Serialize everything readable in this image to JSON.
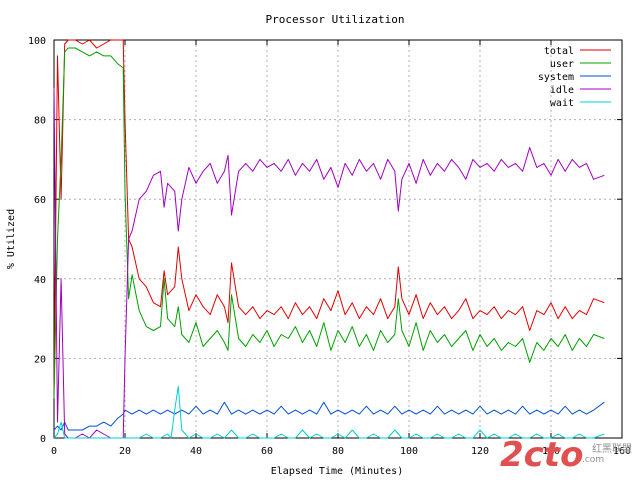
{
  "chart_data": {
    "type": "line",
    "title": "Processor Utilization",
    "xlabel": "Elapsed Time (Minutes)",
    "ylabel": "% Utilized",
    "xlim": [
      0,
      160
    ],
    "ylim": [
      0,
      100
    ],
    "xticks": [
      0,
      20,
      40,
      60,
      80,
      100,
      120,
      140,
      160
    ],
    "yticks": [
      0,
      20,
      40,
      60,
      80,
      100
    ],
    "xtick_labels": [
      "0",
      "20",
      "40",
      "60",
      "80",
      "100",
      "120",
      "140",
      "160"
    ],
    "ytick_labels": [
      "0",
      "20",
      "40",
      "60",
      "80",
      "100"
    ],
    "grid": true,
    "legend_position": "top-right",
    "series": [
      {
        "name": "total",
        "color": "#e00000",
        "x": [
          0,
          1,
          2,
          3,
          4,
          6,
          8,
          10,
          12,
          14,
          16,
          18,
          19.5,
          20,
          21,
          22,
          24,
          26,
          28,
          30,
          31,
          32,
          34,
          35,
          36,
          38,
          40,
          42,
          44,
          46,
          48,
          49,
          50,
          52,
          54,
          56,
          58,
          60,
          62,
          64,
          66,
          68,
          70,
          72,
          74,
          76,
          78,
          80,
          82,
          84,
          86,
          88,
          90,
          92,
          94,
          96,
          97,
          98,
          100,
          102,
          104,
          106,
          108,
          110,
          112,
          114,
          116,
          118,
          120,
          122,
          124,
          126,
          128,
          130,
          132,
          134,
          136,
          138,
          140,
          142,
          144,
          146,
          148,
          150,
          152,
          155
        ],
        "y": [
          12,
          96,
          60,
          99,
          100,
          100,
          99,
          100,
          98,
          99,
          100,
          100,
          100,
          80,
          50,
          48,
          40,
          38,
          34,
          33,
          42,
          36,
          38,
          48,
          40,
          32,
          36,
          33,
          31,
          36,
          33,
          29,
          44,
          33,
          31,
          33,
          30,
          32,
          31,
          33,
          30,
          34,
          31,
          33,
          30,
          35,
          32,
          37,
          31,
          34,
          30,
          33,
          31,
          35,
          30,
          33,
          43,
          35,
          31,
          36,
          30,
          34,
          31,
          33,
          30,
          32,
          35,
          30,
          32,
          31,
          33,
          30,
          32,
          31,
          33,
          27,
          32,
          31,
          34,
          30,
          33,
          30,
          32,
          31,
          35,
          34
        ]
      },
      {
        "name": "user",
        "color": "#00a000",
        "x": [
          0,
          1,
          2,
          3,
          4,
          6,
          8,
          10,
          12,
          14,
          16,
          18,
          19.5,
          20,
          21,
          22,
          24,
          26,
          28,
          30,
          31,
          32,
          34,
          35,
          36,
          38,
          40,
          42,
          44,
          46,
          48,
          49,
          50,
          52,
          54,
          56,
          58,
          60,
          62,
          64,
          66,
          68,
          70,
          72,
          74,
          76,
          78,
          80,
          82,
          84,
          86,
          88,
          90,
          92,
          94,
          96,
          97,
          98,
          100,
          102,
          104,
          106,
          108,
          110,
          112,
          114,
          116,
          118,
          120,
          122,
          124,
          126,
          128,
          130,
          132,
          134,
          136,
          138,
          140,
          142,
          144,
          146,
          148,
          150,
          152,
          155
        ],
        "y": [
          10,
          50,
          70,
          97,
          98,
          98,
          97,
          96,
          97,
          96,
          96,
          94,
          93,
          62,
          35,
          41,
          32,
          28,
          27,
          28,
          40,
          30,
          28,
          33,
          26,
          24,
          29,
          23,
          25,
          27,
          24,
          22,
          36,
          25,
          23,
          26,
          24,
          27,
          23,
          26,
          25,
          28,
          24,
          27,
          23,
          29,
          22,
          27,
          24,
          28,
          23,
          26,
          22,
          27,
          24,
          26,
          35,
          27,
          23,
          29,
          22,
          27,
          24,
          26,
          23,
          25,
          27,
          22,
          26,
          23,
          25,
          22,
          24,
          23,
          25,
          19,
          24,
          22,
          25,
          23,
          26,
          22,
          25,
          23,
          26,
          25
        ]
      },
      {
        "name": "system",
        "color": "#0050d0",
        "x": [
          0,
          1,
          2,
          3,
          4,
          6,
          8,
          10,
          12,
          14,
          16,
          18,
          19.5,
          20,
          22,
          24,
          26,
          28,
          30,
          32,
          34,
          36,
          38,
          40,
          42,
          44,
          46,
          48,
          50,
          52,
          54,
          56,
          58,
          60,
          62,
          64,
          66,
          68,
          70,
          72,
          74,
          76,
          78,
          80,
          82,
          84,
          86,
          88,
          90,
          92,
          94,
          96,
          98,
          100,
          102,
          104,
          106,
          108,
          110,
          112,
          114,
          116,
          118,
          120,
          122,
          124,
          126,
          128,
          130,
          132,
          134,
          136,
          138,
          140,
          142,
          144,
          146,
          148,
          150,
          152,
          155
        ],
        "y": [
          2,
          3,
          2,
          4,
          2,
          2,
          2,
          3,
          3,
          4,
          3,
          5,
          6,
          7,
          6,
          7,
          6,
          7,
          6,
          7,
          6,
          7,
          6,
          8,
          6,
          7,
          6,
          9,
          6,
          7,
          6,
          7,
          6,
          7,
          6,
          8,
          6,
          7,
          6,
          7,
          6,
          9,
          6,
          7,
          6,
          7,
          6,
          8,
          6,
          7,
          6,
          8,
          6,
          7,
          6,
          7,
          6,
          8,
          6,
          7,
          6,
          7,
          6,
          8,
          6,
          7,
          6,
          7,
          6,
          8,
          6,
          7,
          6,
          7,
          6,
          8,
          6,
          7,
          6,
          7,
          9
        ]
      },
      {
        "name": "idle",
        "color": "#a000c0",
        "x": [
          0,
          1,
          2,
          3,
          4,
          6,
          8,
          10,
          12,
          14,
          16,
          18,
          19.5,
          20,
          21,
          22,
          24,
          26,
          28,
          30,
          31,
          32,
          34,
          35,
          36,
          38,
          40,
          42,
          44,
          46,
          48,
          49,
          50,
          52,
          54,
          56,
          58,
          60,
          62,
          64,
          66,
          68,
          70,
          72,
          74,
          76,
          78,
          80,
          82,
          84,
          86,
          88,
          90,
          92,
          94,
          96,
          97,
          98,
          100,
          102,
          104,
          106,
          108,
          110,
          112,
          114,
          116,
          118,
          120,
          122,
          124,
          126,
          128,
          130,
          132,
          134,
          136,
          138,
          140,
          142,
          144,
          146,
          148,
          150,
          152,
          155
        ],
        "y": [
          88,
          4,
          40,
          1,
          0,
          0,
          1,
          0,
          2,
          1,
          0,
          0,
          0,
          20,
          50,
          52,
          60,
          62,
          66,
          67,
          58,
          64,
          62,
          52,
          60,
          68,
          64,
          67,
          69,
          64,
          67,
          71,
          56,
          67,
          69,
          67,
          70,
          68,
          69,
          67,
          70,
          66,
          69,
          67,
          70,
          65,
          68,
          63,
          69,
          66,
          70,
          67,
          69,
          65,
          70,
          67,
          57,
          65,
          69,
          64,
          70,
          66,
          69,
          67,
          70,
          68,
          65,
          70,
          68,
          69,
          67,
          70,
          68,
          69,
          67,
          73,
          68,
          69,
          66,
          70,
          67,
          70,
          68,
          69,
          65,
          66
        ]
      },
      {
        "name": "wait",
        "color": "#00d0d0",
        "x": [
          0,
          1,
          2,
          3,
          4,
          6,
          8,
          10,
          12,
          14,
          16,
          18,
          20,
          22,
          24,
          26,
          28,
          30,
          32,
          33,
          34,
          35,
          36,
          38,
          40,
          42,
          44,
          46,
          48,
          50,
          52,
          54,
          56,
          58,
          60,
          62,
          64,
          66,
          68,
          70,
          72,
          74,
          76,
          78,
          80,
          82,
          84,
          86,
          88,
          90,
          92,
          94,
          96,
          98,
          100,
          102,
          104,
          106,
          108,
          110,
          112,
          114,
          116,
          118,
          120,
          122,
          124,
          126,
          128,
          130,
          132,
          134,
          136,
          138,
          140,
          142,
          144,
          146,
          148,
          150,
          152,
          155
        ],
        "y": [
          0,
          1,
          4,
          0,
          0,
          0,
          0,
          0,
          0,
          0,
          0,
          0,
          0,
          0,
          0,
          1,
          0,
          0,
          1,
          0,
          7,
          13,
          2,
          0,
          1,
          0,
          0,
          1,
          0,
          2,
          0,
          0,
          1,
          0,
          0,
          0,
          1,
          0,
          0,
          2,
          0,
          1,
          0,
          0,
          1,
          0,
          2,
          0,
          0,
          1,
          0,
          0,
          2,
          0,
          0,
          1,
          0,
          0,
          1,
          0,
          0,
          1,
          0,
          0,
          2,
          0,
          1,
          0,
          0,
          1,
          0,
          0,
          1,
          0,
          0,
          1,
          0,
          0,
          1,
          0,
          0,
          1
        ]
      }
    ]
  },
  "watermark": {
    "logo_text": "2cto",
    "logo_suffix": ".com",
    "caption": "红黑联盟"
  }
}
